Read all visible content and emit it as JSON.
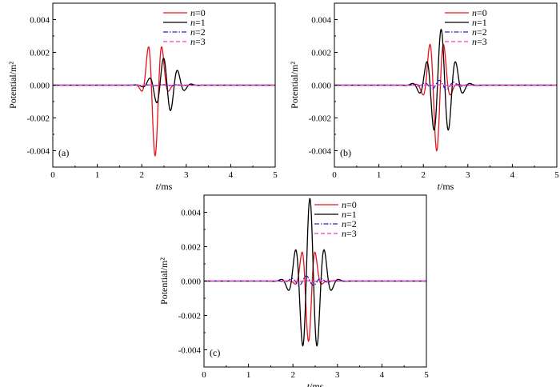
{
  "chart_data": [
    {
      "type": "line",
      "panel_label": "(a)",
      "xlabel_var": "t",
      "xlabel_unit": "/ms",
      "ylabel": "Potential/m²",
      "xlim": [
        0,
        5
      ],
      "ylim": [
        -0.005,
        0.005
      ],
      "xticks": [
        "0",
        "1",
        "2",
        "3",
        "4",
        "5"
      ],
      "yticks": [
        "-0.004",
        "-0.002",
        "0.000",
        "0.002",
        "0.004"
      ],
      "grid": false,
      "legend_position": "top-right",
      "series": [
        {
          "name_var": "n",
          "name_suffix": "=0",
          "color": "#e8141b",
          "dash": "solid",
          "envelope": {
            "center": 2.3,
            "width": 0.2,
            "freq": 3.0,
            "phase": 0.0,
            "amplitude": -0.0043
          }
        },
        {
          "name_var": "n",
          "name_suffix": "=1",
          "color": "#000000",
          "dash": "solid",
          "envelope": {
            "center": 2.55,
            "width": 0.32,
            "freq": 3.1,
            "phase": 1.2,
            "amplitude": 0.0017
          }
        },
        {
          "name_var": "n",
          "name_suffix": "=2",
          "color": "#1f24c8",
          "dash": "dashdot",
          "envelope": {
            "center": 2.5,
            "width": 0.4,
            "freq": 3.0,
            "phase": 0.6,
            "amplitude": 4e-05
          }
        },
        {
          "name_var": "n",
          "name_suffix": "=3",
          "color": "#ff33cc",
          "dash": "dash",
          "envelope": {
            "center": 2.5,
            "width": 0.4,
            "freq": 3.0,
            "phase": 0.0,
            "amplitude": 1e-05
          }
        }
      ]
    },
    {
      "type": "line",
      "panel_label": "(b)",
      "xlabel_var": "t",
      "xlabel_unit": "/ms",
      "ylabel": "Potential/m²",
      "xlim": [
        0,
        5
      ],
      "ylim": [
        -0.005,
        0.005
      ],
      "xticks": [
        "0",
        "1",
        "2",
        "3",
        "4",
        "5"
      ],
      "yticks": [
        "-0.004",
        "-0.002",
        "0.000",
        "0.002",
        "0.004"
      ],
      "grid": false,
      "legend_position": "top-right",
      "series": [
        {
          "name_var": "n",
          "name_suffix": "=0",
          "color": "#e8141b",
          "dash": "solid",
          "envelope": {
            "center": 2.3,
            "width": 0.23,
            "freq": 3.0,
            "phase": 0.0,
            "amplitude": -0.004
          }
        },
        {
          "name_var": "n",
          "name_suffix": "=1",
          "color": "#000000",
          "dash": "solid",
          "envelope": {
            "center": 2.4,
            "width": 0.35,
            "freq": 3.0,
            "phase": 0.0,
            "amplitude": 0.0034
          }
        },
        {
          "name_var": "n",
          "name_suffix": "=2",
          "color": "#1f24c8",
          "dash": "dashdot",
          "envelope": {
            "center": 2.4,
            "width": 0.4,
            "freq": 3.0,
            "phase": 0.8,
            "amplitude": 0.0003
          }
        },
        {
          "name_var": "n",
          "name_suffix": "=3",
          "color": "#ff33cc",
          "dash": "dash",
          "envelope": {
            "center": 2.4,
            "width": 0.4,
            "freq": 3.0,
            "phase": 0.0,
            "amplitude": 2e-05
          }
        }
      ]
    },
    {
      "type": "line",
      "panel_label": "(c)",
      "xlabel_var": "t",
      "xlabel_unit": "/ms",
      "ylabel": "Potential/m²",
      "xlim": [
        0,
        5
      ],
      "ylim": [
        -0.005,
        0.005
      ],
      "xticks": [
        "0",
        "1",
        "2",
        "3",
        "4",
        "5"
      ],
      "yticks": [
        "-0.004",
        "-0.002",
        "0.000",
        "0.002",
        "0.004"
      ],
      "grid": false,
      "legend_position": "top-right",
      "series": [
        {
          "name_var": "n",
          "name_suffix": "=0",
          "color": "#e8141b",
          "dash": "solid",
          "envelope": {
            "center": 2.35,
            "width": 0.18,
            "freq": 3.0,
            "phase": 0.0,
            "amplitude": -0.0035
          }
        },
        {
          "name_var": "n",
          "name_suffix": "=1",
          "color": "#000000",
          "dash": "solid",
          "envelope": {
            "center": 2.38,
            "width": 0.33,
            "freq": 3.0,
            "phase": 0.0,
            "amplitude": 0.0048
          }
        },
        {
          "name_var": "n",
          "name_suffix": "=2",
          "color": "#1f24c8",
          "dash": "dashdot",
          "envelope": {
            "center": 2.3,
            "width": 0.4,
            "freq": 3.0,
            "phase": 0.0,
            "amplitude": 0.0003
          }
        },
        {
          "name_var": "n",
          "name_suffix": "=3",
          "color": "#ff33cc",
          "dash": "dash",
          "envelope": {
            "center": 2.3,
            "width": 0.4,
            "freq": 3.0,
            "phase": 0.0,
            "amplitude": 2e-05
          }
        }
      ]
    }
  ]
}
